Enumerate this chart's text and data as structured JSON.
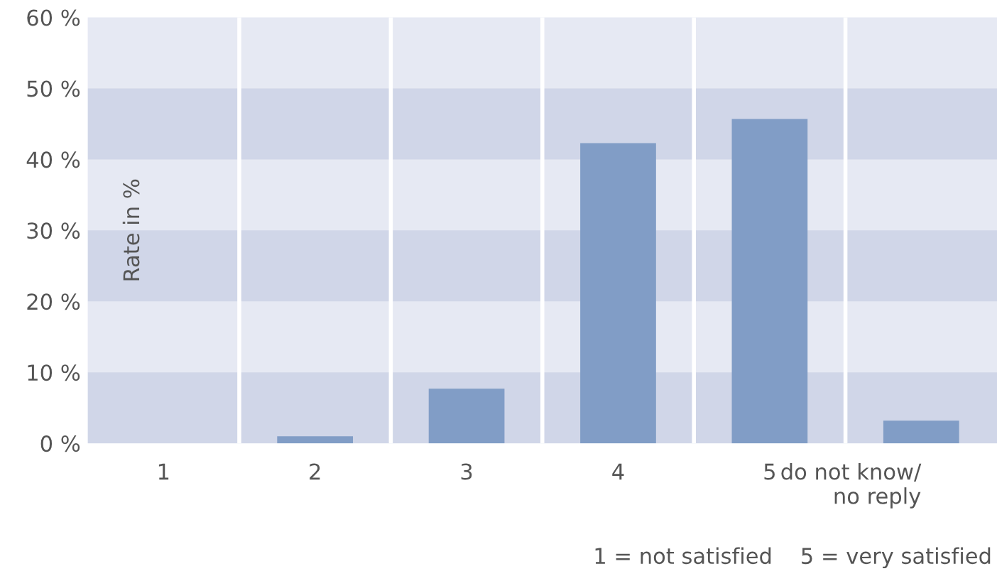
{
  "chart_data": {
    "type": "bar",
    "ylabel": "Rate in %",
    "categories": [
      "1",
      "2",
      "3",
      "4",
      "5",
      "do not know/\nno reply"
    ],
    "values": [
      0,
      1.0,
      7.7,
      42.3,
      45.7,
      3.2
    ],
    "color": "#819dc6",
    "ylim": [
      0,
      60
    ],
    "yticks": [
      {
        "value": 0,
        "label": "0 %"
      },
      {
        "value": 10,
        "label": "10 %"
      },
      {
        "value": 20,
        "label": "20 %"
      },
      {
        "value": 30,
        "label": "30 %"
      },
      {
        "value": 40,
        "label": "40 %"
      },
      {
        "value": 50,
        "label": "50 %"
      },
      {
        "value": 60,
        "label": "60 %"
      }
    ],
    "grid": true,
    "annotations": [
      "1 = not satisfied    5 = very satisfied"
    ]
  }
}
